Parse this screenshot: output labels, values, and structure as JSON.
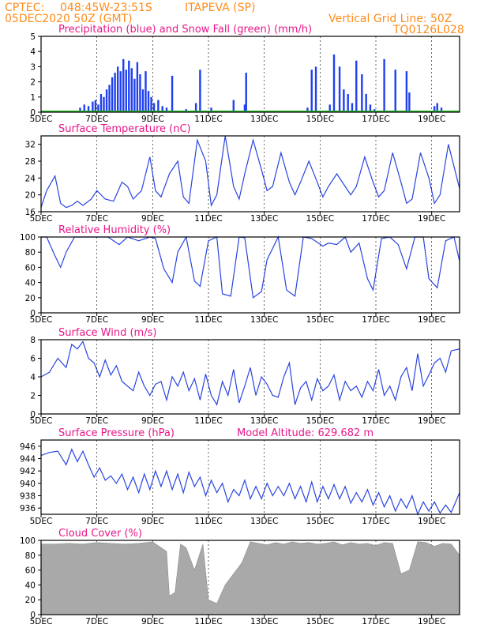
{
  "header": {
    "source": "CPTEC:",
    "coords": "048:45W-23:51S",
    "station": "ITAPEVA (SP)",
    "run": "05DEC2020 50Z (GMT)",
    "grid_note": "Vertical Grid Line: 50Z",
    "code": "TQ0126L028"
  },
  "colors": {
    "precip": "#1f3ff0",
    "snow": "#22bb22",
    "line": "#2a44e0",
    "cloud": "#a9a9a9",
    "title": "#e8178a",
    "header": "#ff8c1a"
  },
  "x_labels": [
    "5DEC",
    "7DEC",
    "9DEC",
    "11DEC",
    "13DEC",
    "15DEC",
    "17DEC",
    "19DEC"
  ],
  "chart_data": [
    {
      "type": "bar",
      "title": "Precipitation (blue) and Snow Fall (green) (mm/h)",
      "ylim": [
        0,
        5
      ],
      "yticks": [
        0,
        1,
        2,
        3,
        4,
        5
      ],
      "series": [
        {
          "name": "Precipitation",
          "x": [
            1.4,
            1.55,
            1.7,
            1.85,
            1.95,
            2.05,
            2.15,
            2.25,
            2.35,
            2.45,
            2.55,
            2.65,
            2.75,
            2.85,
            2.95,
            3.05,
            3.15,
            3.25,
            3.35,
            3.45,
            3.55,
            3.65,
            3.75,
            3.85,
            3.95,
            4.05,
            4.2,
            4.35,
            4.5,
            4.7,
            5.2,
            5.55,
            5.7,
            6.1,
            6.9,
            7.3,
            7.35,
            9.55,
            9.7,
            9.85,
            10.35,
            10.5,
            10.7,
            10.85,
            11.0,
            11.15,
            11.3,
            11.5,
            11.65,
            11.8,
            11.95,
            12.3,
            12.7,
            13.1,
            13.2,
            14.1,
            14.2,
            14.35
          ],
          "values": [
            0.3,
            0.5,
            0.4,
            0.7,
            0.8,
            0.5,
            1.2,
            1.0,
            1.5,
            1.8,
            2.3,
            2.6,
            3.0,
            2.7,
            3.5,
            2.8,
            3.4,
            2.9,
            2.2,
            3.3,
            2.5,
            1.5,
            2.7,
            1.4,
            1.0,
            0.6,
            0.8,
            0.4,
            0.3,
            2.4,
            0.2,
            0.6,
            2.8,
            0.3,
            0.8,
            0.5,
            2.6,
            0.3,
            2.8,
            3.0,
            0.5,
            3.8,
            3.0,
            1.5,
            1.2,
            0.6,
            3.4,
            2.5,
            1.2,
            0.5,
            0.2,
            3.5,
            2.8,
            2.7,
            1.3,
            0.4,
            0.6,
            0.3
          ]
        },
        {
          "name": "Snow Fall",
          "x": [
            0,
            15
          ],
          "values": [
            0.05,
            0.05
          ]
        }
      ]
    },
    {
      "type": "line",
      "title": "Surface Temperature (nC)",
      "ylim": [
        16,
        34
      ],
      "yticks": [
        16,
        20,
        24,
        28,
        32
      ],
      "x": [
        0,
        0.2,
        0.5,
        0.7,
        0.9,
        1.1,
        1.3,
        1.5,
        1.8,
        2.0,
        2.3,
        2.6,
        2.9,
        3.1,
        3.3,
        3.6,
        3.9,
        4.1,
        4.3,
        4.6,
        4.9,
        5.1,
        5.3,
        5.6,
        5.9,
        6.1,
        6.3,
        6.6,
        6.9,
        7.1,
        7.3,
        7.6,
        7.9,
        8.1,
        8.3,
        8.6,
        8.9,
        9.1,
        9.3,
        9.6,
        9.9,
        10.1,
        10.3,
        10.6,
        10.9,
        11.1,
        11.3,
        11.6,
        11.9,
        12.1,
        12.3,
        12.6,
        12.9,
        13.1,
        13.3,
        13.6,
        13.9,
        14.1,
        14.3,
        14.6,
        15.0
      ],
      "values": [
        17,
        21,
        24.5,
        18,
        17,
        17.5,
        18.5,
        17.5,
        19,
        21,
        19,
        18.5,
        23,
        22,
        19,
        21,
        29,
        21,
        19.5,
        25,
        28,
        19.5,
        18,
        33,
        28,
        17.5,
        20,
        34,
        22,
        19,
        25,
        33,
        26,
        21,
        22,
        30,
        23,
        20,
        23,
        28,
        23,
        19.5,
        22,
        25,
        22,
        20,
        22,
        29,
        23,
        19.5,
        21,
        30,
        23,
        18,
        19,
        30,
        24,
        18,
        20,
        32,
        21.5
      ]
    },
    {
      "type": "line",
      "title": "Relative Humidity (%)",
      "ylim": [
        0,
        100
      ],
      "yticks": [
        0,
        20,
        40,
        60,
        80,
        100
      ],
      "x": [
        0,
        0.2,
        0.5,
        0.7,
        0.9,
        1.2,
        1.6,
        2.0,
        2.4,
        2.8,
        3.1,
        3.5,
        3.9,
        4.1,
        4.4,
        4.7,
        4.9,
        5.2,
        5.5,
        5.7,
        6.0,
        6.3,
        6.5,
        6.8,
        7.1,
        7.3,
        7.6,
        7.9,
        8.1,
        8.5,
        8.8,
        9.1,
        9.4,
        9.7,
        10.1,
        10.3,
        10.6,
        10.9,
        11.1,
        11.4,
        11.7,
        11.9,
        12.2,
        12.5,
        12.8,
        13.1,
        13.4,
        13.7,
        13.9,
        14.2,
        14.5,
        14.8,
        15.0
      ],
      "values": [
        100,
        100,
        75,
        60,
        80,
        100,
        100,
        100,
        100,
        90,
        100,
        95,
        100,
        98,
        58,
        40,
        80,
        100,
        42,
        35,
        95,
        100,
        25,
        22,
        100,
        99,
        20,
        28,
        70,
        100,
        30,
        22,
        100,
        98,
        88,
        92,
        90,
        100,
        80,
        92,
        45,
        30,
        98,
        100,
        90,
        58,
        100,
        100,
        45,
        33,
        95,
        100,
        68
      ]
    },
    {
      "type": "line",
      "title": "Surface Wind (m/s)",
      "ylim": [
        0,
        8
      ],
      "yticks": [
        0,
        2,
        4,
        6,
        8
      ],
      "x": [
        0,
        0.3,
        0.6,
        0.9,
        1.1,
        1.3,
        1.5,
        1.7,
        1.9,
        2.1,
        2.3,
        2.5,
        2.7,
        2.9,
        3.1,
        3.3,
        3.5,
        3.7,
        3.9,
        4.1,
        4.3,
        4.5,
        4.7,
        4.9,
        5.1,
        5.3,
        5.5,
        5.7,
        5.9,
        6.1,
        6.3,
        6.5,
        6.7,
        6.9,
        7.1,
        7.3,
        7.5,
        7.7,
        7.9,
        8.1,
        8.3,
        8.5,
        8.7,
        8.9,
        9.1,
        9.3,
        9.5,
        9.7,
        9.9,
        10.1,
        10.3,
        10.5,
        10.7,
        10.9,
        11.1,
        11.3,
        11.5,
        11.7,
        11.9,
        12.1,
        12.3,
        12.5,
        12.7,
        12.9,
        13.1,
        13.3,
        13.5,
        13.7,
        13.9,
        14.1,
        14.3,
        14.5,
        14.7,
        15.0
      ],
      "values": [
        4,
        4.5,
        6,
        5,
        7.5,
        7,
        7.8,
        6,
        5.5,
        4,
        5.8,
        4.2,
        5.2,
        3.5,
        3,
        2.5,
        4.5,
        3,
        2,
        3.2,
        3.5,
        1.5,
        4,
        3,
        4.5,
        2.5,
        3.8,
        1.5,
        4.3,
        2,
        1,
        3.5,
        2,
        4.8,
        1.2,
        3,
        5,
        2,
        4,
        3.2,
        2,
        1.8,
        4,
        5.5,
        1,
        2.8,
        3.5,
        1.5,
        3.8,
        2.5,
        3,
        4.2,
        1.5,
        3.5,
        2.5,
        3,
        1.8,
        3.5,
        2.5,
        4.8,
        2,
        3,
        1.5,
        4,
        5,
        2.5,
        6.5,
        3,
        4.2,
        5.5,
        6,
        4.5,
        6.8,
        7
      ]
    },
    {
      "type": "line",
      "title": "Surface Pressure (hPa)",
      "subtitle": "Model Altitude: 629.682 m",
      "ylim": [
        935,
        947
      ],
      "yticks": [
        936,
        938,
        940,
        942,
        944,
        946
      ],
      "x": [
        0,
        0.3,
        0.6,
        0.9,
        1.1,
        1.3,
        1.5,
        1.7,
        1.9,
        2.1,
        2.3,
        2.5,
        2.7,
        2.9,
        3.1,
        3.3,
        3.5,
        3.7,
        3.9,
        4.1,
        4.3,
        4.5,
        4.7,
        4.9,
        5.1,
        5.3,
        5.5,
        5.7,
        5.9,
        6.1,
        6.3,
        6.5,
        6.7,
        6.9,
        7.1,
        7.3,
        7.5,
        7.7,
        7.9,
        8.1,
        8.3,
        8.5,
        8.7,
        8.9,
        9.1,
        9.3,
        9.5,
        9.7,
        9.9,
        10.1,
        10.3,
        10.5,
        10.7,
        10.9,
        11.1,
        11.3,
        11.5,
        11.7,
        11.9,
        12.1,
        12.3,
        12.5,
        12.7,
        12.9,
        13.1,
        13.3,
        13.5,
        13.7,
        13.9,
        14.1,
        14.3,
        14.5,
        14.7,
        15.0
      ],
      "values": [
        944.5,
        945,
        945.2,
        943,
        945.5,
        943.5,
        945.2,
        943,
        941,
        942.5,
        940.5,
        941.2,
        940,
        941.5,
        939,
        941,
        938.5,
        941.5,
        939,
        942,
        939.5,
        942,
        939,
        941.5,
        938.5,
        941.8,
        939.5,
        941,
        938,
        940.5,
        938.5,
        940,
        937,
        939,
        938,
        940.5,
        937.5,
        939.5,
        937.5,
        940,
        938,
        939.5,
        938,
        940,
        937.5,
        939.5,
        937,
        940.2,
        937,
        939.5,
        937.5,
        939.8,
        937.5,
        939.5,
        936.8,
        938.5,
        937,
        939,
        936.5,
        938.5,
        936.2,
        938,
        935.5,
        937.5,
        936,
        938,
        935,
        937,
        935.5,
        937,
        935.2,
        936.5,
        935.3,
        938.5
      ]
    },
    {
      "type": "area",
      "title": "Cloud Cover (%)",
      "ylim": [
        0,
        100
      ],
      "yticks": [
        0,
        20,
        40,
        60,
        80,
        100
      ],
      "x": [
        0,
        0.5,
        1.0,
        1.5,
        2.0,
        2.5,
        3.0,
        3.5,
        4.0,
        4.5,
        4.6,
        4.8,
        5.0,
        5.2,
        5.5,
        5.8,
        6.0,
        6.3,
        6.6,
        6.9,
        7.2,
        7.5,
        7.8,
        8.1,
        8.4,
        8.7,
        9.0,
        9.3,
        9.6,
        9.9,
        10.2,
        10.5,
        10.8,
        11.1,
        11.4,
        11.7,
        12.0,
        12.3,
        12.6,
        12.9,
        13.2,
        13.5,
        13.8,
        14.1,
        14.4,
        14.7,
        15.0
      ],
      "values": [
        95,
        95,
        96,
        95,
        97,
        96,
        95,
        96,
        98,
        85,
        25,
        30,
        95,
        90,
        60,
        95,
        20,
        15,
        40,
        55,
        70,
        98,
        96,
        94,
        97,
        95,
        98,
        96,
        97,
        95,
        96,
        98,
        94,
        97,
        95,
        96,
        93,
        97,
        96,
        55,
        60,
        98,
        97,
        92,
        96,
        95,
        80
      ]
    }
  ]
}
